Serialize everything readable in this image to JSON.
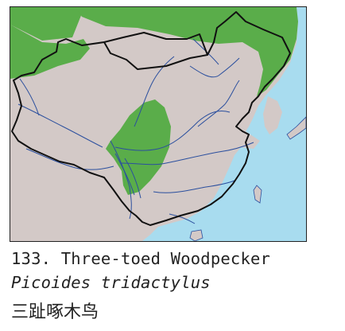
{
  "caption": {
    "number_and_common_name": "133. Three-toed Woodpecker",
    "scientific_name": "Picoides tridactylus",
    "chinese_name": "三趾啄木鸟"
  },
  "colors": {
    "sea": "#a8dcef",
    "land": "#d3c9c7",
    "range": "#5aad4a",
    "rivers": "#2b4f9e",
    "border": "#111111"
  }
}
